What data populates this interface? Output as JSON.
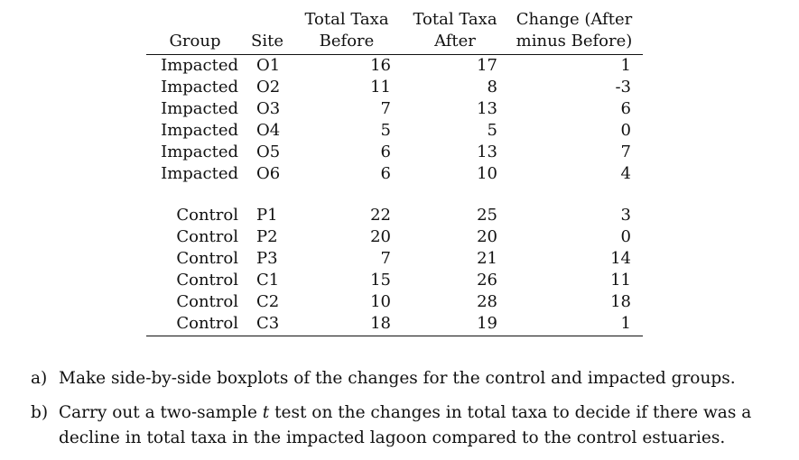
{
  "table": {
    "headers": {
      "group": "Group",
      "site": "Site",
      "before_line1": "Total Taxa",
      "before_line2": "Before",
      "after_line1": "Total Taxa",
      "after_line2": "After",
      "change_line1": "Change (After",
      "change_line2": "minus Before)"
    },
    "impacted_rows": [
      {
        "group": "Impacted",
        "site": "O1",
        "before": "16",
        "after": "17",
        "change": "1"
      },
      {
        "group": "Impacted",
        "site": "O2",
        "before": "11",
        "after": "8",
        "change": "-3"
      },
      {
        "group": "Impacted",
        "site": "O3",
        "before": "7",
        "after": "13",
        "change": "6"
      },
      {
        "group": "Impacted",
        "site": "O4",
        "before": "5",
        "after": "5",
        "change": "0"
      },
      {
        "group": "Impacted",
        "site": "O5",
        "before": "6",
        "after": "13",
        "change": "7"
      },
      {
        "group": "Impacted",
        "site": "O6",
        "before": "6",
        "after": "10",
        "change": "4"
      }
    ],
    "control_rows": [
      {
        "group": "Control",
        "site": "P1",
        "before": "22",
        "after": "25",
        "change": "3"
      },
      {
        "group": "Control",
        "site": "P2",
        "before": "20",
        "after": "20",
        "change": "0"
      },
      {
        "group": "Control",
        "site": "P3",
        "before": "7",
        "after": "21",
        "change": "14"
      },
      {
        "group": "Control",
        "site": "C1",
        "before": "15",
        "after": "26",
        "change": "11"
      },
      {
        "group": "Control",
        "site": "C2",
        "before": "10",
        "after": "28",
        "change": "18"
      },
      {
        "group": "Control",
        "site": "C3",
        "before": "18",
        "after": "19",
        "change": "1"
      }
    ]
  },
  "questions": [
    {
      "label": "a)",
      "text": "Make side-by-side boxplots of the changes for the control and impacted groups."
    },
    {
      "label": "b)",
      "text_before_t": "Carry out a two-sample ",
      "t": "t",
      "text_after_t": " test on the changes in total taxa to decide if there was a decline in total taxa in the impacted lagoon compared to the control estuaries."
    }
  ]
}
